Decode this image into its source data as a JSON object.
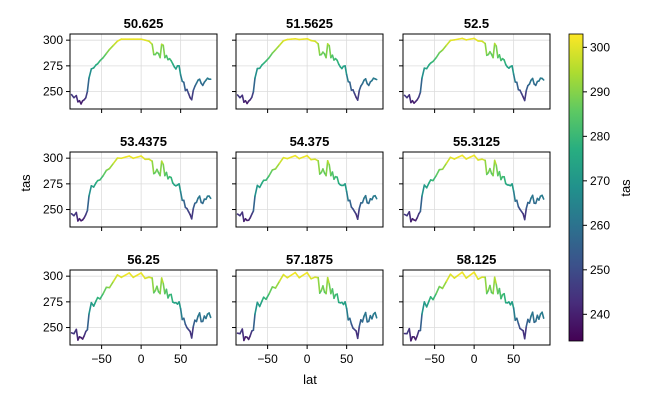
{
  "chart_data": {
    "type": "line",
    "layout": "3x3 small multiples",
    "ylabel": "tas",
    "xlabel": "lat",
    "xlim": [
      -90,
      96
    ],
    "ylim": [
      233,
      306
    ],
    "x_ticks": [
      -50,
      0,
      50
    ],
    "y_ticks": [
      250,
      275,
      300
    ],
    "grid": true,
    "colormap": "viridis",
    "colorbar": {
      "label": "tas",
      "range": [
        234,
        303
      ],
      "ticks": [
        240,
        250,
        260,
        270,
        280,
        290,
        300
      ],
      "placement": "right"
    },
    "panels": [
      {
        "title": "50.625",
        "shift": 0
      },
      {
        "title": "51.5625",
        "shift": 0.6
      },
      {
        "title": "52.5",
        "shift": 1.2
      },
      {
        "title": "53.4375",
        "shift": 1.8
      },
      {
        "title": "54.375",
        "shift": 2.4
      },
      {
        "title": "55.3125",
        "shift": 3.0
      },
      {
        "title": "56.25",
        "shift": 3.6
      },
      {
        "title": "57.1875",
        "shift": 4.2
      },
      {
        "title": "58.125",
        "shift": 4.8
      }
    ],
    "profile": {
      "x": [
        -88,
        -85,
        -82,
        -80,
        -78,
        -76,
        -74,
        -72,
        -70,
        -68,
        -66,
        -63,
        -60,
        -57,
        -55,
        -52,
        -48,
        -44,
        -40,
        -35,
        -30,
        -25,
        -20,
        -15,
        -10,
        -5,
        0,
        5,
        10,
        14,
        16,
        18,
        20,
        22,
        24,
        26,
        28,
        30,
        32,
        34,
        36,
        38,
        40,
        42,
        44,
        46,
        48,
        50,
        52,
        54,
        56,
        58,
        60,
        62,
        64,
        66,
        68,
        70,
        72,
        74,
        76,
        78,
        80,
        82,
        84,
        86,
        88
      ],
      "values": [
        247,
        244,
        246,
        240,
        241,
        238,
        241,
        242,
        244,
        250,
        263,
        272,
        273,
        276,
        277,
        280,
        283,
        287,
        291,
        295,
        299,
        301,
        301,
        301,
        301,
        301,
        301,
        300,
        299,
        296,
        286,
        286,
        288,
        287,
        283,
        296,
        295,
        283,
        285,
        281,
        282,
        280,
        277,
        274,
        272,
        275,
        275,
        266,
        260,
        259,
        251,
        252,
        248,
        244,
        242,
        251,
        255,
        258,
        261,
        262,
        258,
        256,
        259,
        261,
        263,
        262,
        262
      ]
    }
  }
}
